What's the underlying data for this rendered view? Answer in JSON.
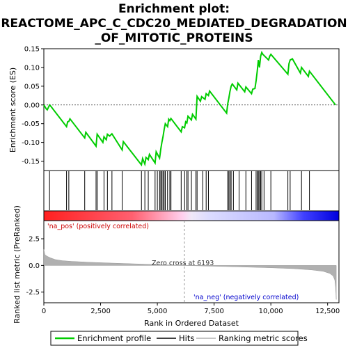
{
  "title_lines": [
    "Enrichment plot:",
    "REACTOME_APC_C_CDC20_MEDIATED_DEGRADATION",
    "_OF_MITOTIC_PROTEINS"
  ],
  "colors": {
    "es_line": "#00cc00",
    "hits": "#000000",
    "metric_fill": "#b0b0b0",
    "pos_label": "#cc0000",
    "neg_label": "#0000cc",
    "zero_line": "#999999"
  },
  "chart_data": [
    {
      "type": "line",
      "name": "es-panel",
      "ylabel": "Enrichment score (ES)",
      "ylim": [
        -0.175,
        0.15
      ],
      "yticks": [
        0.15,
        0.1,
        0.05,
        0.0,
        -0.05,
        -0.1,
        -0.15
      ],
      "ytick_labels": [
        "0.15",
        "0.10",
        "0.05",
        "0.00",
        "-0.05",
        "-0.10",
        "-0.15"
      ],
      "xlim": [
        0,
        13000
      ],
      "series": [
        {
          "x": [
            0,
            100,
            150,
            250,
            300,
            1000,
            1050,
            1100,
            1150,
            1800,
            1850,
            2300,
            2350,
            2600,
            2650,
            2750,
            2800,
            2900,
            3000,
            3450,
            3500,
            4300,
            4350,
            4450,
            4500,
            4600,
            4650,
            4900,
            4950,
            5100,
            5150,
            5200,
            5250,
            5300,
            5350,
            5450,
            5500,
            5550,
            5600,
            6050,
            6100,
            6200,
            6250,
            6300,
            6350,
            6500,
            6550,
            6700,
            6750,
            6900,
            6950,
            7100,
            7150,
            7250,
            7300,
            8050,
            8100,
            8150,
            8200,
            8250,
            8300,
            8500,
            8550,
            8850,
            8900,
            9150,
            9200,
            9300,
            9350,
            9400,
            9450,
            9500,
            9550,
            9600,
            9650,
            9900,
            9950,
            10000,
            10750,
            10800,
            10850,
            10950,
            11300,
            11350,
            11650,
            11700,
            12850
          ],
          "values": [
            0.0,
            -0.01,
            -0.013,
            0.0,
            -0.003,
            -0.058,
            -0.045,
            -0.044,
            -0.037,
            -0.088,
            -0.073,
            -0.11,
            -0.078,
            -0.1,
            -0.085,
            -0.093,
            -0.078,
            -0.083,
            -0.077,
            -0.12,
            -0.098,
            -0.16,
            -0.143,
            -0.158,
            -0.14,
            -0.146,
            -0.132,
            -0.155,
            -0.125,
            -0.142,
            -0.118,
            -0.1,
            -0.085,
            -0.065,
            -0.05,
            -0.058,
            -0.038,
            -0.042,
            -0.036,
            -0.072,
            -0.058,
            -0.061,
            -0.045,
            -0.048,
            -0.03,
            -0.04,
            -0.025,
            -0.038,
            0.023,
            0.01,
            0.022,
            0.015,
            0.03,
            0.025,
            0.037,
            -0.022,
            0.003,
            0.018,
            0.036,
            0.05,
            0.056,
            0.04,
            0.058,
            0.035,
            0.048,
            0.03,
            0.042,
            0.044,
            0.065,
            0.09,
            0.12,
            0.1,
            0.13,
            0.14,
            0.135,
            0.12,
            0.13,
            0.135,
            0.082,
            0.11,
            0.12,
            0.123,
            0.085,
            0.1,
            0.076,
            0.09,
            0.0
          ]
        }
      ]
    },
    {
      "type": "scatter",
      "name": "hits-panel",
      "x": [
        250,
        1000,
        1100,
        1800,
        2300,
        2350,
        2650,
        2800,
        3000,
        3450,
        4300,
        4450,
        4600,
        4900,
        5000,
        5100,
        5150,
        5200,
        5250,
        5300,
        5350,
        5450,
        5550,
        5600,
        6050,
        6200,
        6300,
        6350,
        6500,
        6700,
        6750,
        7000,
        7150,
        7250,
        8100,
        8150,
        8200,
        8250,
        8350,
        8600,
        8900,
        9150,
        9350,
        9400,
        9450,
        9500,
        9550,
        9600,
        9700,
        10000,
        10750,
        10850,
        11350,
        11700
      ]
    },
    {
      "type": "area",
      "name": "ranked-metric-panel",
      "ylabel": "Ranked list metric (PreRanked)",
      "xlabel": "Rank in Ordered Dataset",
      "ylim": [
        -3.5,
        4.2
      ],
      "yticks": [
        2.5,
        0.0,
        -2.5
      ],
      "ytick_labels": [
        "2.5",
        "0.0",
        "-2.5"
      ],
      "xlim": [
        0,
        13000
      ],
      "xticks": [
        0,
        2500,
        5000,
        7500,
        10000,
        12500
      ],
      "xtick_labels": [
        "0",
        "2,500",
        "5,000",
        "7,500",
        "10,000",
        "12,500"
      ],
      "x": [
        0,
        50,
        150,
        300,
        500,
        800,
        1200,
        2000,
        3000,
        4000,
        5000,
        6193,
        7000,
        8000,
        9000,
        10000,
        11000,
        11800,
        12300,
        12600,
        12750,
        12820,
        12850,
        12870,
        12880
      ],
      "values": [
        1.5,
        1.0,
        0.85,
        0.7,
        0.55,
        0.45,
        0.38,
        0.3,
        0.22,
        0.15,
        0.08,
        0.0,
        -0.05,
        -0.1,
        -0.16,
        -0.22,
        -0.3,
        -0.42,
        -0.55,
        -0.75,
        -1.0,
        -1.4,
        -2.0,
        -2.8,
        -3.2
      ],
      "annotations": {
        "zero_cross": "Zero cross at 6193",
        "pos_label": "'na_pos' (positively correlated)",
        "neg_label": "'na_neg' (negatively correlated)"
      },
      "zero_cross_rank": 6193
    }
  ],
  "legend": {
    "items": [
      {
        "label": "Enrichment profile",
        "color": "#00cc00"
      },
      {
        "label": "Hits",
        "color": "#000000"
      },
      {
        "label": "Ranking metric scores",
        "color": "#b0b0b0"
      }
    ]
  }
}
